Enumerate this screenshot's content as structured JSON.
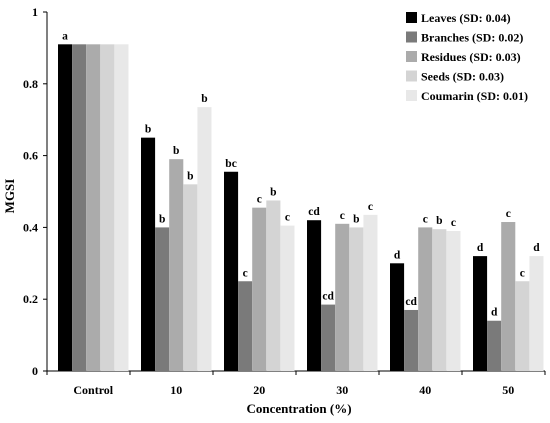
{
  "chart_data": {
    "type": "bar",
    "title": "",
    "xlabel": "Concentration (%)",
    "ylabel": "MGSI",
    "ylim": [
      0,
      1
    ],
    "yticks": [
      "0",
      "0.2",
      "0.4",
      "0.6",
      "0.8",
      "1"
    ],
    "grid": false,
    "legend_position": "top-right",
    "categories": [
      "Control",
      "10",
      "20",
      "30",
      "40",
      "50"
    ],
    "series": [
      {
        "name": "Leaves (SD: 0.04)",
        "color": "#000000",
        "values": [
          0.91,
          0.65,
          0.555,
          0.42,
          0.3,
          0.32
        ],
        "labels": [
          "a",
          "b",
          "bc",
          "cd",
          "d",
          "d"
        ]
      },
      {
        "name": "Branches (SD: 0.02)",
        "color": "#7a7a7a",
        "values": [
          0.91,
          0.4,
          0.25,
          0.185,
          0.17,
          0.14
        ],
        "labels": [
          "",
          "b",
          "c",
          "cd",
          "cd",
          "d"
        ]
      },
      {
        "name": "Residues (SD: 0.03)",
        "color": "#ababab",
        "values": [
          0.91,
          0.59,
          0.455,
          0.41,
          0.4,
          0.415
        ],
        "labels": [
          "",
          "b",
          "c",
          "c",
          "c",
          "c"
        ]
      },
      {
        "name": "Seeds (SD: 0.03)",
        "color": "#d4d4d4",
        "values": [
          0.91,
          0.52,
          0.475,
          0.4,
          0.395,
          0.25
        ],
        "labels": [
          "",
          "b",
          "b",
          "b",
          "b",
          "c"
        ]
      },
      {
        "name": "Coumarin (SD: 0.01)",
        "color": "#e8e8e8",
        "values": [
          0.91,
          0.735,
          0.405,
          0.435,
          0.39,
          0.32
        ],
        "labels": [
          "",
          "b",
          "c",
          "c",
          "c",
          "d"
        ]
      }
    ]
  }
}
